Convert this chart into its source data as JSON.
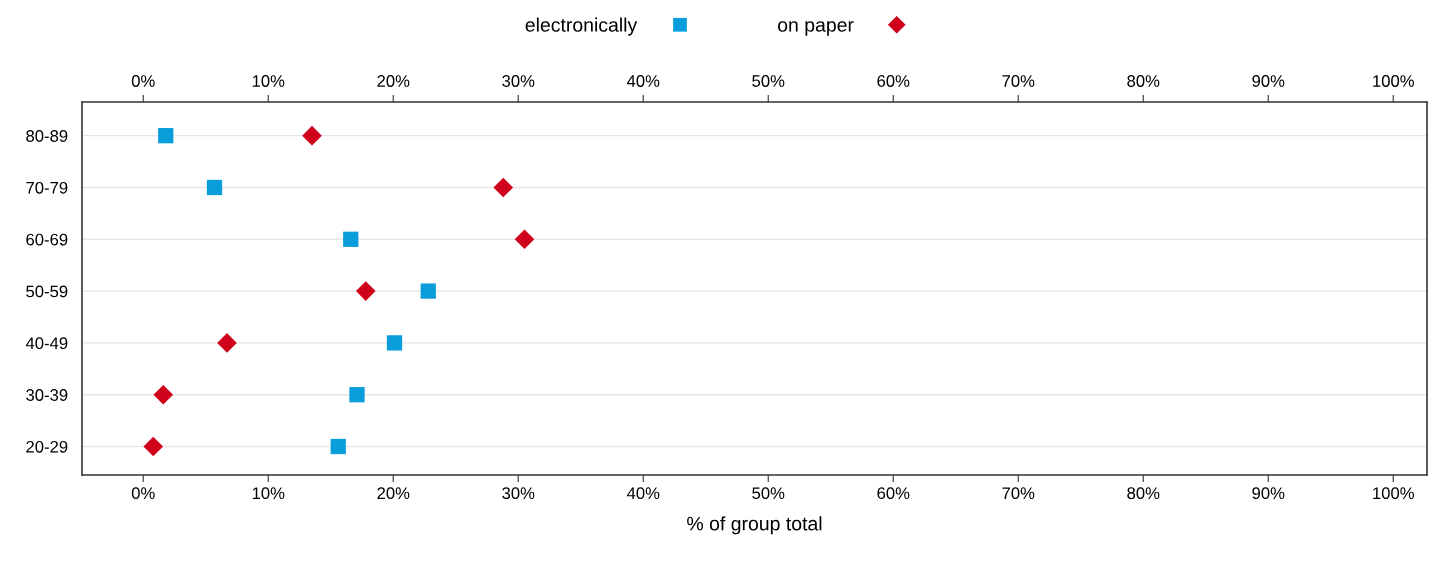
{
  "chart_data": {
    "type": "scatter",
    "orientation": "horizontal",
    "xlabel": "% of group total",
    "categories": [
      "80-89",
      "70-79",
      "60-69",
      "50-59",
      "40-49",
      "30-39",
      "20-29"
    ],
    "series": [
      {
        "name": "electronically",
        "color": "#0a9ddc",
        "marker": "square",
        "values": [
          1.8,
          5.7,
          16.6,
          22.8,
          20.1,
          17.1,
          15.6
        ]
      },
      {
        "name": "on paper",
        "color": "#d0021b",
        "marker": "diamond",
        "values": [
          13.5,
          28.8,
          30.5,
          17.8,
          6.7,
          1.6,
          0.8
        ]
      }
    ],
    "xlim": [
      -4.9,
      102.7
    ],
    "xticks": [
      {
        "value": 0,
        "label": "0%"
      },
      {
        "value": 10,
        "label": "10%"
      },
      {
        "value": 20,
        "label": "20%"
      },
      {
        "value": 30,
        "label": "30%"
      },
      {
        "value": 40,
        "label": "40%"
      },
      {
        "value": 50,
        "label": "50%"
      },
      {
        "value": 60,
        "label": "60%"
      },
      {
        "value": 70,
        "label": "70%"
      },
      {
        "value": 80,
        "label": "80%"
      },
      {
        "value": 90,
        "label": "90%"
      },
      {
        "value": 100,
        "label": "100%"
      }
    ],
    "x2lim": [
      -4.9,
      102.7
    ],
    "x2ticks": [
      {
        "value": 0,
        "label": "0%"
      },
      {
        "value": 10,
        "label": "10%"
      },
      {
        "value": 20,
        "label": "20%"
      },
      {
        "value": 30,
        "label": "30%"
      },
      {
        "value": 40,
        "label": "40%"
      },
      {
        "value": 50,
        "label": "50%"
      },
      {
        "value": 60,
        "label": "60%"
      },
      {
        "value": 70,
        "label": "70%"
      },
      {
        "value": 80,
        "label": "80%"
      },
      {
        "value": 90,
        "label": "90%"
      },
      {
        "value": 100,
        "label": "100%"
      }
    ],
    "grid": "y",
    "legend": "top"
  }
}
